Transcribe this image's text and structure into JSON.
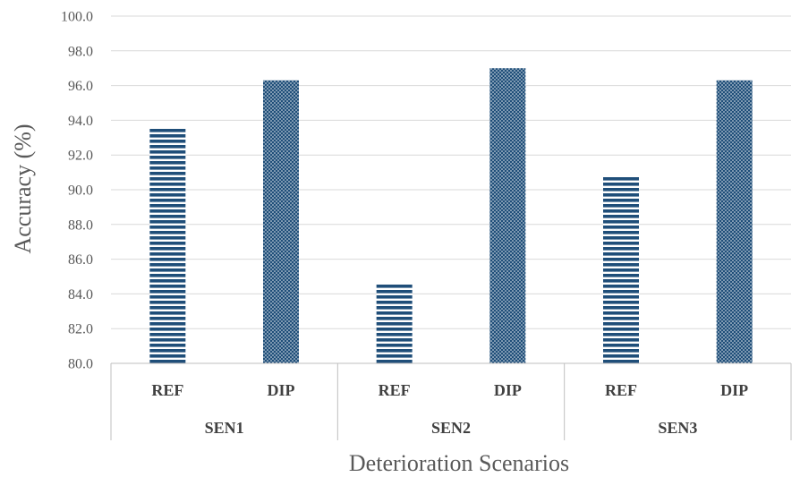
{
  "chart_data": {
    "type": "bar",
    "title": "",
    "xlabel": "Deterioration Scenarios",
    "ylabel": "Accuracy (%)",
    "ylim": [
      80,
      100
    ],
    "ytick_step": 2,
    "grid": true,
    "groups": [
      {
        "name": "SEN1",
        "bars": [
          {
            "label": "REF",
            "value": 93.6
          },
          {
            "label": "DIP",
            "value": 96.3
          }
        ]
      },
      {
        "name": "SEN2",
        "bars": [
          {
            "label": "REF",
            "value": 84.6
          },
          {
            "label": "DIP",
            "value": 97.0
          }
        ]
      },
      {
        "name": "SEN3",
        "bars": [
          {
            "label": "REF",
            "value": 90.8
          },
          {
            "label": "DIP",
            "value": 96.3
          }
        ]
      }
    ],
    "bar_color": "#1f4e79",
    "fills": {
      "REF": "horizontal-stripes",
      "DIP": "dots"
    }
  }
}
